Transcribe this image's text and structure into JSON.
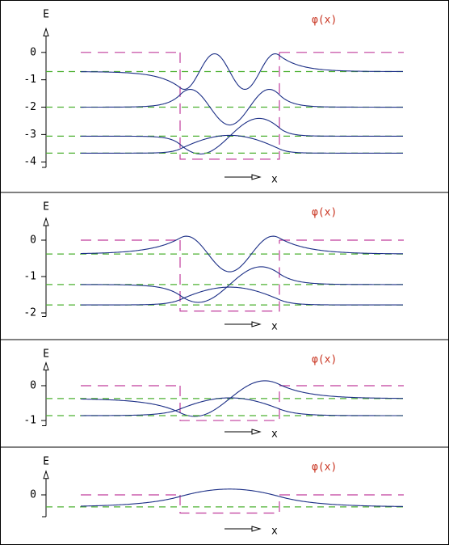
{
  "chart_data": [
    {
      "type": "line",
      "ylabel": "E",
      "annotation": "φ(x)",
      "xlabel": "x",
      "ylim": [
        -4.2,
        0.6
      ],
      "yticks": [
        0,
        -1,
        -2,
        -3,
        -4
      ],
      "potential": [
        0,
        -3.9
      ],
      "levels": [
        -0.7,
        -2.0,
        -3.06,
        -3.68
      ],
      "wave_color": "#1c2f86",
      "level_color": "#4cb030",
      "potential_color": "#c03c9c",
      "annotation_color": "#c8321e"
    },
    {
      "type": "line",
      "ylabel": "E",
      "annotation": "φ(x)",
      "xlabel": "x",
      "ylim": [
        -2.1,
        0.4
      ],
      "yticks": [
        0,
        -1,
        -2
      ],
      "potential": [
        0,
        -1.95
      ],
      "levels": [
        -0.38,
        -1.22,
        -1.78
      ],
      "wave_color": "#1c2f86",
      "level_color": "#4cb030",
      "potential_color": "#c03c9c",
      "annotation_color": "#c8321e"
    },
    {
      "type": "line",
      "ylabel": "E",
      "annotation": "φ(x)",
      "xlabel": "x",
      "ylim": [
        -1.15,
        0.45
      ],
      "yticks": [
        0,
        -1
      ],
      "potential": [
        0,
        -1.0
      ],
      "levels": [
        -0.37,
        -0.86
      ],
      "wave_color": "#1c2f86",
      "level_color": "#4cb030",
      "potential_color": "#c03c9c",
      "annotation_color": "#c8321e"
    },
    {
      "type": "line",
      "ylabel": "E",
      "annotation": "φ(x)",
      "xlabel": "x",
      "ylim": [
        -0.6,
        0.45
      ],
      "yticks": [
        0
      ],
      "potential": [
        0,
        -0.5
      ],
      "levels": [
        -0.33
      ],
      "wave_color": "#1c2f86",
      "level_color": "#4cb030",
      "potential_color": "#c03c9c",
      "annotation_color": "#c8321e"
    }
  ]
}
